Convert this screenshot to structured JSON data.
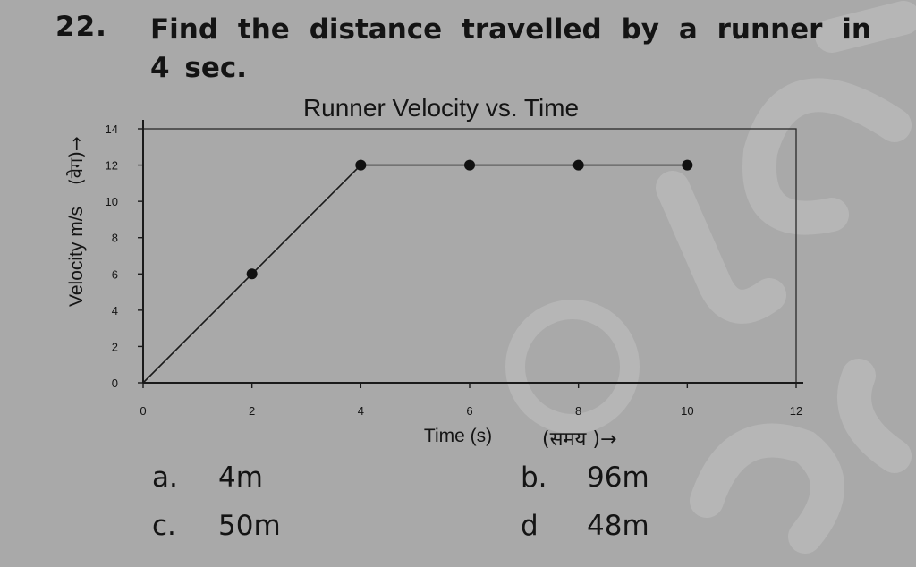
{
  "question": {
    "number": "22.",
    "text": "Find the distance travelled by a runner in 4 sec."
  },
  "chart_data": {
    "type": "line",
    "title": "Runner Velocity vs. Time",
    "xlabel": "Time (s)",
    "xlabel_hindi": "(समय )→",
    "ylabel": "Velocity m/s",
    "ylabel_hindi": "(वेग)→",
    "xlim": [
      0,
      12
    ],
    "ylim": [
      0,
      14
    ],
    "xticks": [
      0,
      2,
      4,
      6,
      8,
      10,
      12
    ],
    "yticks": [
      0,
      2,
      4,
      6,
      8,
      10,
      12,
      14
    ],
    "x": [
      0,
      2,
      4,
      6,
      8,
      10
    ],
    "y": [
      0,
      6,
      12,
      12,
      12,
      12
    ],
    "markers_at": [
      2,
      4,
      6,
      8,
      10
    ],
    "grid": false,
    "line_color": "#1a1a1a"
  },
  "options": [
    {
      "label": "a.",
      "value": "4m"
    },
    {
      "label": "b.",
      "value": "96m"
    },
    {
      "label": "c.",
      "value": "50m"
    },
    {
      "label": "d",
      "value": "48m"
    }
  ],
  "watermark": {
    "text": "JCEbe",
    "symbol": "©"
  }
}
